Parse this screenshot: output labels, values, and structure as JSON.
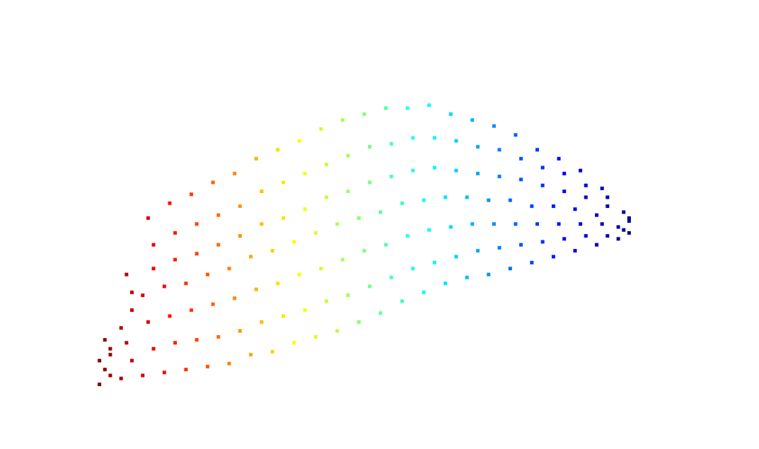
{
  "chart_data": {
    "type": "scatter",
    "colormap": "jet",
    "colormap_reversed": true,
    "marker": "square",
    "xlim": [
      0,
      100
    ],
    "ylim": [
      0,
      100
    ],
    "x": [
      1,
      3,
      2,
      1,
      3,
      3,
      2,
      5,
      7,
      6,
      5,
      7,
      7,
      6,
      9,
      11,
      10,
      9,
      11,
      11,
      10,
      13,
      15,
      14,
      13,
      15,
      15,
      14,
      17,
      19,
      18,
      17,
      19,
      19,
      18,
      21,
      23,
      22,
      21,
      23,
      23,
      22,
      25,
      27,
      26,
      25,
      27,
      27,
      26,
      29,
      31,
      30,
      29,
      31,
      31,
      30,
      33,
      35,
      34,
      33,
      35,
      35,
      34,
      37,
      39,
      38,
      37,
      39,
      39,
      38,
      41,
      43,
      42,
      41,
      43,
      43,
      42,
      45,
      47,
      46,
      45,
      47,
      47,
      46,
      49,
      51,
      50,
      49,
      51,
      51,
      50,
      53,
      55,
      54,
      53,
      55,
      55,
      54,
      57,
      59,
      58,
      57,
      59,
      59,
      58,
      61,
      63,
      62,
      61,
      63,
      63,
      62,
      65,
      67,
      66,
      65,
      67,
      67,
      66,
      69,
      71,
      70,
      69,
      71,
      71,
      70,
      73,
      75,
      74,
      73,
      75,
      75,
      74,
      77,
      79,
      78,
      77,
      79,
      79,
      78,
      81,
      83,
      82,
      81,
      83,
      83,
      82,
      85,
      87,
      86,
      85,
      87,
      87,
      86,
      89,
      91,
      90,
      89,
      91,
      91,
      90,
      93,
      95,
      94,
      93,
      95,
      95,
      94,
      97,
      99,
      98,
      97,
      99,
      99,
      98
    ],
    "y": [
      2,
      5,
      7,
      10,
      12,
      14,
      17,
      4,
      10,
      16,
      21,
      27,
      33,
      39,
      5,
      14,
      23,
      32,
      41,
      49,
      58,
      6,
      16,
      25,
      35,
      44,
      53,
      63,
      7,
      17,
      27,
      36,
      46,
      56,
      66,
      8,
      18,
      29,
      39,
      49,
      59,
      70,
      9,
      20,
      31,
      41,
      52,
      62,
      73,
      12,
      23,
      34,
      45,
      56,
      67,
      78,
      13,
      25,
      36,
      47,
      58,
      70,
      81,
      16,
      27,
      39,
      50,
      61,
      73,
      84,
      18,
      30,
      41,
      53,
      65,
      76,
      88,
      20,
      32,
      44,
      56,
      67,
      79,
      91,
      23,
      35,
      47,
      58,
      70,
      82,
      93,
      26,
      38,
      49,
      60,
      72,
      83,
      95,
      30,
      41,
      52,
      63,
      74,
      85,
      95,
      33,
      43,
      54,
      64,
      75,
      85,
      96,
      36,
      45,
      55,
      65,
      74,
      84,
      93,
      38,
      47,
      56,
      65,
      73,
      82,
      91,
      39,
      48,
      56,
      64,
      72,
      81,
      89,
      41,
      49,
      56,
      64,
      71,
      78,
      86,
      43,
      50,
      56,
      62,
      69,
      75,
      81,
      45,
      51,
      56,
      62,
      67,
      73,
      78,
      47,
      52,
      56,
      61,
      65,
      69,
      74,
      49,
      52,
      56,
      59,
      62,
      65,
      68,
      51,
      53,
      54,
      55,
      57,
      58,
      60
    ]
  }
}
